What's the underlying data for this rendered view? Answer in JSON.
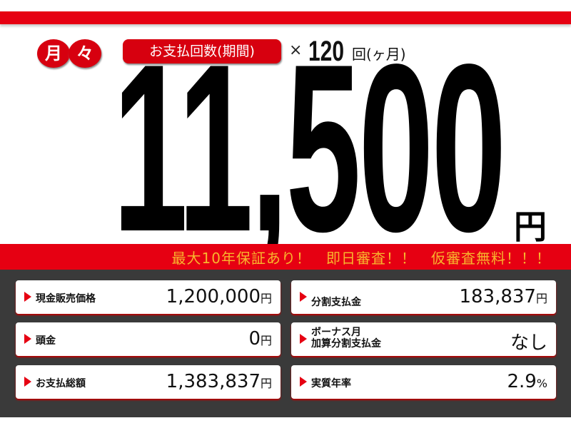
{
  "header": {
    "monthly_label": [
      "月",
      "々"
    ],
    "period_label": "お支払回数(期間)",
    "times": "×",
    "count": "120",
    "count_unit": "回(ヶ月)"
  },
  "price": {
    "amount": "11,500",
    "unit": "円"
  },
  "banner": "最大10年保証あり！　即日審査！！　仮審査無料！！！",
  "details": [
    {
      "label": "現金販売価格",
      "value": "1,200,000",
      "unit": "円"
    },
    {
      "label": "分割支払金",
      "value": "183,837",
      "unit": "円"
    },
    {
      "label": "頭金",
      "value": "0",
      "unit": "円"
    },
    {
      "label": [
        "ボーナス月",
        "加算分割支払金"
      ],
      "value": "なし",
      "unit": ""
    },
    {
      "label": "お支払総額",
      "value": "1,383,837",
      "unit": "円"
    },
    {
      "label": "実質年率",
      "value": "2.9",
      "unit": "%"
    }
  ],
  "colors": {
    "red": "#e60012",
    "banner_text": "#f8b62d",
    "panel": "#3a3a3a"
  }
}
